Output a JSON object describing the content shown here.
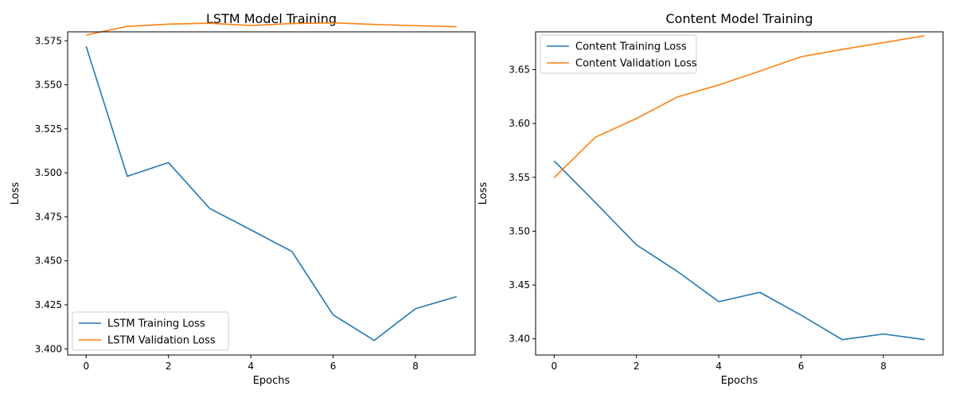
{
  "chart_data": [
    {
      "type": "line",
      "title": "LSTM Model Training",
      "xlabel": "Epochs",
      "ylabel": "Loss",
      "xlim": [
        -0.45,
        9.45
      ],
      "ylim": [
        3.3965,
        3.5801
      ],
      "xticks": [
        0,
        2,
        4,
        6,
        8
      ],
      "yticks": [
        3.4,
        3.425,
        3.45,
        3.475,
        3.5,
        3.525,
        3.55,
        3.575
      ],
      "legend_position": "lower-left",
      "x": [
        0,
        1,
        2,
        3,
        4,
        5,
        6,
        7,
        8,
        9
      ],
      "series": [
        {
          "name": "LSTM Training Loss",
          "color": "#1f77b4",
          "values": [
            3.5718,
            3.498,
            3.5058,
            3.4798,
            3.4676,
            3.4553,
            3.4193,
            3.4048,
            3.4228,
            3.4297
          ]
        },
        {
          "name": "LSTM Validation Loss",
          "color": "#ff7f0e",
          "values": [
            3.5783,
            3.5832,
            3.5845,
            3.585,
            3.5837,
            3.5848,
            3.5852,
            3.5843,
            3.5836,
            3.583
          ]
        }
      ]
    },
    {
      "type": "line",
      "title": "Content Model Training",
      "xlabel": "Epochs",
      "ylabel": "Loss",
      "xlim": [
        -0.45,
        9.45
      ],
      "ylim": [
        3.385,
        3.6851
      ],
      "xticks": [
        0,
        2,
        4,
        6,
        8
      ],
      "yticks": [
        3.4,
        3.45,
        3.5,
        3.55,
        3.6,
        3.65
      ],
      "legend_position": "top-left",
      "x": [
        0,
        1,
        2,
        3,
        4,
        5,
        6,
        7,
        8,
        9
      ],
      "series": [
        {
          "name": "Content Training Loss",
          "color": "#1f77b4",
          "values": [
            3.5653,
            3.5267,
            3.4873,
            3.4625,
            3.4345,
            3.4432,
            3.422,
            3.3993,
            3.4045,
            3.3993
          ]
        },
        {
          "name": "Content Validation Loss",
          "color": "#ff7f0e",
          "values": [
            3.5497,
            3.5872,
            3.6046,
            3.6247,
            3.6358,
            3.6486,
            3.662,
            3.6688,
            3.6751,
            3.6815
          ]
        }
      ]
    }
  ]
}
